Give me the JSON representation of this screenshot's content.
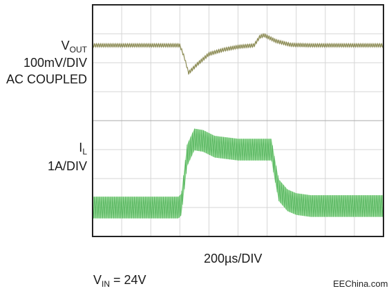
{
  "labels": {
    "vout_main": "V",
    "vout_sub": "OUT",
    "vout_scale": "100mV/DIV",
    "vout_coupling": "AC COUPLED",
    "il_main": "I",
    "il_sub": "L",
    "il_scale": "1A/DIV",
    "time_scale": "200µs/DIV",
    "vin_main": "V",
    "vin_sub": "IN",
    "vin_value": " = 24V",
    "watermark": "EEChina.com"
  },
  "colors": {
    "frame": "#222222",
    "grid": "#d6d6d6",
    "vout_trace": "#7b7a3c",
    "il_trace": "#7fd17f",
    "il_trace_dark": "#3fa84a"
  },
  "chart_data": {
    "type": "line",
    "title": "",
    "xlabel": "200µs/DIV",
    "ylabel": "",
    "grid": true,
    "x_divisions": 10,
    "y_divisions": 8,
    "xlim": [
      0,
      10
    ],
    "ylim": [
      0,
      8
    ],
    "x_unit": "div",
    "y_unit": "div",
    "series": [
      {
        "name": "VOUT",
        "x": [
          0,
          3.0,
          3.15,
          3.3,
          3.6,
          4.0,
          4.5,
          5.0,
          5.55,
          5.75,
          5.9,
          6.3,
          6.8,
          7.5,
          10
        ],
        "y": [
          6.6,
          6.6,
          6.2,
          5.65,
          5.95,
          6.3,
          6.45,
          6.55,
          6.6,
          6.9,
          6.95,
          6.75,
          6.62,
          6.6,
          6.6
        ],
        "ripple": 0.12
      },
      {
        "name": "IL",
        "x": [
          0,
          2.95,
          3.05,
          3.25,
          3.5,
          3.8,
          4.2,
          5.0,
          6.15,
          6.25,
          6.4,
          6.7,
          7.0,
          7.5,
          10
        ],
        "y": [
          1.0,
          1.0,
          1.1,
          2.8,
          3.35,
          3.3,
          3.1,
          3.0,
          3.0,
          2.4,
          1.6,
          1.25,
          1.12,
          1.05,
          1.05
        ],
        "ripple": 0.75
      }
    ]
  }
}
